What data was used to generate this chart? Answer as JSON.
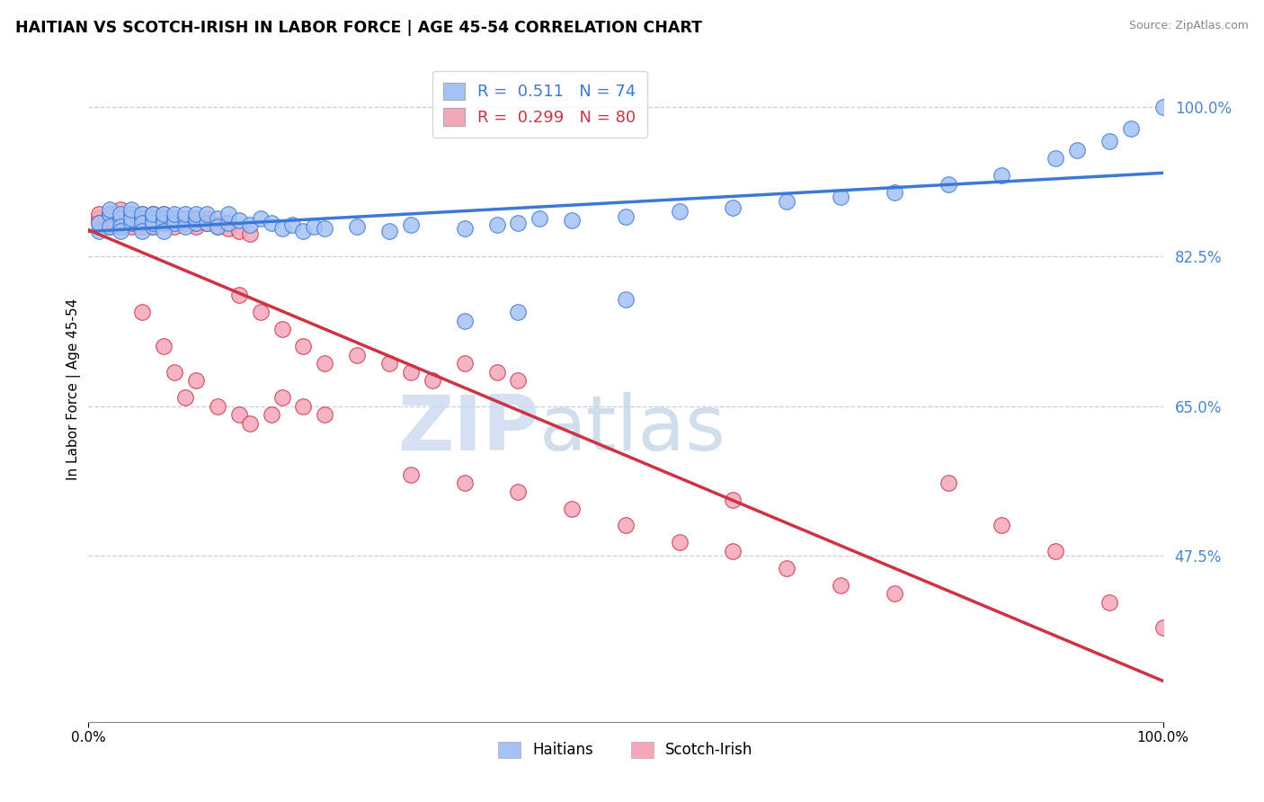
{
  "title": "HAITIAN VS SCOTCH-IRISH IN LABOR FORCE | AGE 45-54 CORRELATION CHART",
  "source": "Source: ZipAtlas.com",
  "ylabel": "In Labor Force | Age 45-54",
  "blue_R": 0.511,
  "blue_N": 74,
  "pink_R": 0.299,
  "pink_N": 80,
  "blue_color": "#a4c2f4",
  "pink_color": "#f4a7b9",
  "blue_line_color": "#3c78d8",
  "pink_line_color": "#cc3344",
  "watermark_zip": "ZIP",
  "watermark_atlas": "atlas",
  "xmin": 0.0,
  "xmax": 1.0,
  "ymin": 0.28,
  "ymax": 1.06,
  "ytick_values": [
    0.475,
    0.65,
    0.825,
    1.0
  ],
  "ytick_labels": [
    "47.5%",
    "65.0%",
    "82.5%",
    "100.0%"
  ],
  "blue_x": [
    0.01,
    0.01,
    0.02,
    0.02,
    0.02,
    0.03,
    0.03,
    0.03,
    0.03,
    0.04,
    0.04,
    0.04,
    0.04,
    0.05,
    0.05,
    0.05,
    0.05,
    0.06,
    0.06,
    0.06,
    0.06,
    0.06,
    0.07,
    0.07,
    0.07,
    0.07,
    0.08,
    0.08,
    0.08,
    0.09,
    0.09,
    0.09,
    0.1,
    0.1,
    0.1,
    0.11,
    0.11,
    0.12,
    0.12,
    0.13,
    0.13,
    0.14,
    0.15,
    0.16,
    0.17,
    0.18,
    0.19,
    0.2,
    0.21,
    0.22,
    0.25,
    0.28,
    0.3,
    0.35,
    0.38,
    0.4,
    0.42,
    0.45,
    0.5,
    0.55,
    0.6,
    0.65,
    0.7,
    0.75,
    0.8,
    0.85,
    0.9,
    0.92,
    0.95,
    0.97,
    1.0,
    0.35,
    0.4,
    0.5
  ],
  "blue_y": [
    0.855,
    0.865,
    0.875,
    0.86,
    0.88,
    0.87,
    0.875,
    0.86,
    0.855,
    0.875,
    0.865,
    0.87,
    0.88,
    0.87,
    0.875,
    0.865,
    0.855,
    0.875,
    0.87,
    0.86,
    0.865,
    0.875,
    0.87,
    0.865,
    0.855,
    0.875,
    0.87,
    0.865,
    0.875,
    0.87,
    0.86,
    0.875,
    0.865,
    0.87,
    0.875,
    0.865,
    0.875,
    0.87,
    0.86,
    0.865,
    0.875,
    0.868,
    0.862,
    0.87,
    0.865,
    0.858,
    0.862,
    0.855,
    0.86,
    0.858,
    0.86,
    0.855,
    0.862,
    0.858,
    0.862,
    0.865,
    0.87,
    0.868,
    0.872,
    0.878,
    0.882,
    0.89,
    0.895,
    0.9,
    0.91,
    0.92,
    0.94,
    0.95,
    0.96,
    0.975,
    1.0,
    0.75,
    0.76,
    0.775
  ],
  "pink_x": [
    0.01,
    0.01,
    0.01,
    0.02,
    0.02,
    0.02,
    0.03,
    0.03,
    0.03,
    0.03,
    0.04,
    0.04,
    0.04,
    0.04,
    0.05,
    0.05,
    0.05,
    0.05,
    0.06,
    0.06,
    0.06,
    0.06,
    0.07,
    0.07,
    0.07,
    0.08,
    0.08,
    0.08,
    0.09,
    0.09,
    0.1,
    0.1,
    0.1,
    0.11,
    0.11,
    0.12,
    0.12,
    0.13,
    0.14,
    0.15,
    0.05,
    0.07,
    0.08,
    0.09,
    0.1,
    0.12,
    0.14,
    0.15,
    0.17,
    0.18,
    0.2,
    0.22,
    0.14,
    0.16,
    0.18,
    0.2,
    0.22,
    0.25,
    0.28,
    0.3,
    0.32,
    0.35,
    0.38,
    0.4,
    0.3,
    0.35,
    0.4,
    0.45,
    0.5,
    0.55,
    0.6,
    0.65,
    0.7,
    0.75,
    0.8,
    0.85,
    0.9,
    0.95,
    1.0,
    0.6
  ],
  "pink_y": [
    0.87,
    0.875,
    0.865,
    0.875,
    0.86,
    0.87,
    0.88,
    0.87,
    0.865,
    0.86,
    0.875,
    0.865,
    0.87,
    0.86,
    0.875,
    0.87,
    0.865,
    0.86,
    0.875,
    0.87,
    0.865,
    0.86,
    0.875,
    0.87,
    0.865,
    0.87,
    0.865,
    0.86,
    0.87,
    0.865,
    0.87,
    0.865,
    0.86,
    0.865,
    0.87,
    0.862,
    0.86,
    0.858,
    0.855,
    0.852,
    0.76,
    0.72,
    0.69,
    0.66,
    0.68,
    0.65,
    0.64,
    0.63,
    0.64,
    0.66,
    0.65,
    0.64,
    0.78,
    0.76,
    0.74,
    0.72,
    0.7,
    0.71,
    0.7,
    0.69,
    0.68,
    0.7,
    0.69,
    0.68,
    0.57,
    0.56,
    0.55,
    0.53,
    0.51,
    0.49,
    0.48,
    0.46,
    0.44,
    0.43,
    0.56,
    0.51,
    0.48,
    0.42,
    0.39,
    0.54
  ]
}
